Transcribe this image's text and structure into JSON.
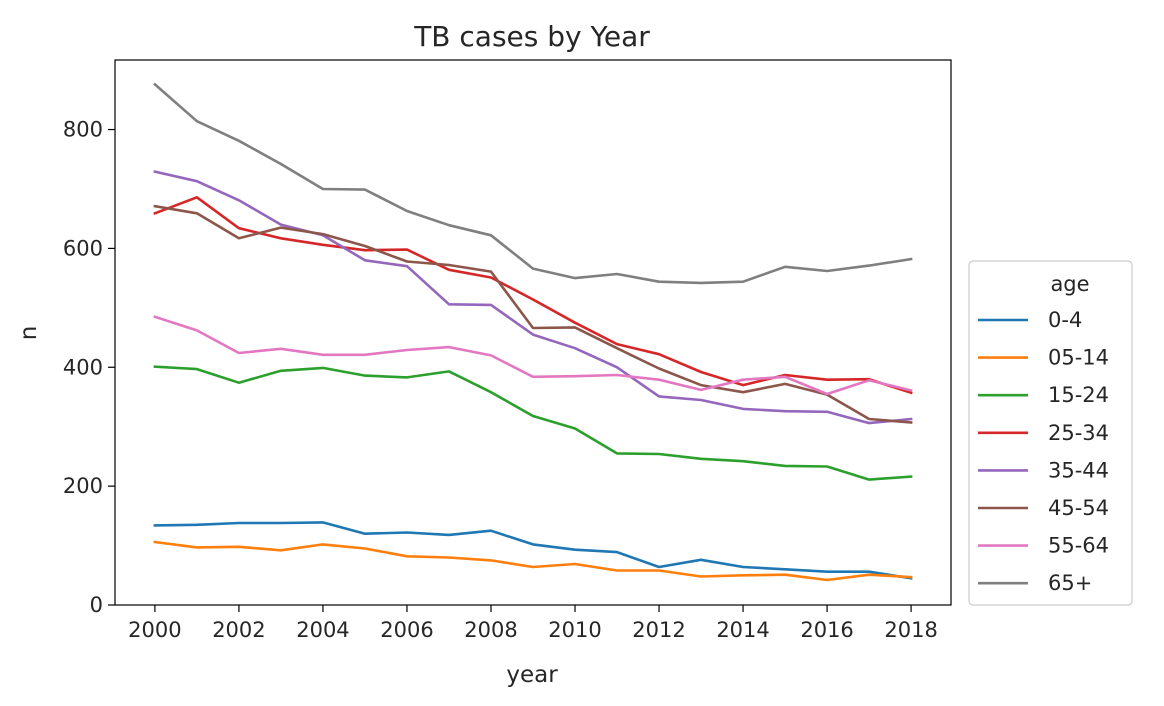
{
  "chart_data": {
    "type": "line",
    "title": "TB cases by Year",
    "xlabel": "year",
    "ylabel": "n",
    "xlim": [
      1999.05,
      2018.95
    ],
    "ylim": [
      0,
      917
    ],
    "xticks": [
      2000,
      2002,
      2004,
      2006,
      2008,
      2010,
      2012,
      2014,
      2016,
      2018
    ],
    "yticks": [
      0,
      200,
      400,
      600,
      800
    ],
    "grid": false,
    "legend": {
      "title": "age",
      "placement": "right-center"
    },
    "x": [
      2000,
      2001,
      2002,
      2003,
      2004,
      2005,
      2006,
      2007,
      2008,
      2009,
      2010,
      2011,
      2012,
      2013,
      2014,
      2015,
      2016,
      2017,
      2018
    ],
    "series": [
      {
        "name": "0-4",
        "color": "#1f77b4",
        "values": [
          134,
          135,
          138,
          138,
          139,
          120,
          122,
          118,
          125,
          102,
          93,
          89,
          64,
          76,
          64,
          60,
          56,
          56,
          45
        ]
      },
      {
        "name": "05-14",
        "color": "#ff7f0e",
        "values": [
          106,
          97,
          98,
          92,
          102,
          95,
          82,
          80,
          75,
          64,
          69,
          58,
          58,
          48,
          50,
          51,
          42,
          51,
          47
        ]
      },
      {
        "name": "15-24",
        "color": "#2ca02c",
        "values": [
          401,
          397,
          374,
          394,
          399,
          386,
          383,
          393,
          358,
          318,
          297,
          255,
          254,
          246,
          242,
          234,
          233,
          211,
          216
        ]
      },
      {
        "name": "25-34",
        "color": "#d62728",
        "values": [
          659,
          686,
          634,
          617,
          606,
          597,
          598,
          564,
          551,
          514,
          475,
          439,
          422,
          392,
          370,
          387,
          379,
          380,
          357
        ]
      },
      {
        "name": "35-44",
        "color": "#9467bd",
        "values": [
          729,
          713,
          681,
          640,
          622,
          580,
          570,
          506,
          505,
          455,
          432,
          400,
          351,
          345,
          330,
          326,
          325,
          306,
          313
        ]
      },
      {
        "name": "45-54",
        "color": "#8c564b",
        "values": [
          671,
          659,
          617,
          635,
          624,
          604,
          578,
          572,
          561,
          466,
          467,
          432,
          398,
          370,
          358,
          372,
          354,
          313,
          307
        ]
      },
      {
        "name": "55-64",
        "color": "#e377c2",
        "values": [
          485,
          462,
          424,
          431,
          421,
          421,
          429,
          434,
          420,
          384,
          385,
          387,
          379,
          362,
          379,
          384,
          355,
          378,
          361
        ]
      },
      {
        "name": "65+",
        "color": "#7f7f7f",
        "values": [
          876,
          814,
          781,
          742,
          700,
          699,
          663,
          639,
          622,
          566,
          550,
          557,
          544,
          542,
          544,
          569,
          562,
          571,
          582
        ]
      }
    ]
  }
}
